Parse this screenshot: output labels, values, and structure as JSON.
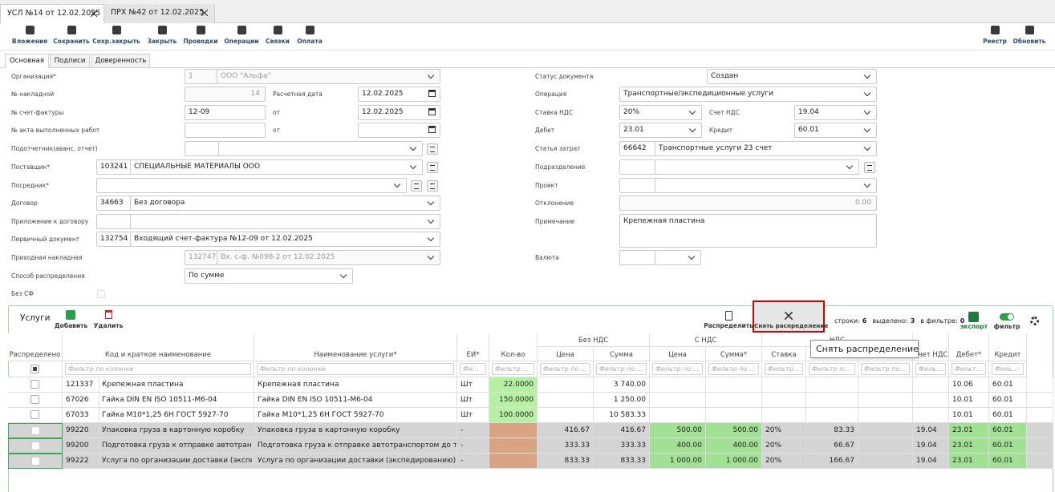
{
  "tabs": [
    "УСЛ №14 от 12.02.2025",
    "ПРХ №42 от 12.02.2025"
  ],
  "toolbar": {
    "left": [
      "Вложения",
      "Сохранить",
      "Сохр.закрыть",
      "Закрыть",
      "Проводки",
      "Операции",
      "Связки",
      "Оплата"
    ],
    "right": [
      "Реестр",
      "Обновить"
    ]
  },
  "subtabs": [
    "Основная",
    "Подписи",
    "Доверенность"
  ],
  "form": {
    "org": {
      "label": "Организация*",
      "code": "1",
      "value": "ООО \"Альфа\""
    },
    "invoice_no": {
      "label": "№ накладной",
      "value": "14"
    },
    "calc_date": {
      "label": "Расчетная дата",
      "value": "12.02.2025"
    },
    "sf_no": {
      "label": "№ счет-фактуры",
      "value": "12-09"
    },
    "sf_date": {
      "label": "от",
      "value": "12.02.2025"
    },
    "act_no": {
      "label": "№ акта выполненных работ"
    },
    "act_date": {
      "label": "от"
    },
    "accountable": {
      "label": "Подотчетник(аванс. отчет)"
    },
    "supplier": {
      "label": "Поставщик*",
      "code": "103241",
      "value": "СПЕЦИАЛЬНЫЕ МАТЕРИАЛЫ ООО"
    },
    "intermediary": {
      "label": "Посредник*"
    },
    "contract": {
      "label": "Договор",
      "code": "34663",
      "value": "Без договора"
    },
    "appendix": {
      "label": "Приложение к договору"
    },
    "primary_doc": {
      "label": "Первичный документ",
      "code": "132754",
      "value": "Входящий счет-фактура №12-09 от 12.02.2025"
    },
    "receipt": {
      "label": "Приходная накладная",
      "code": "132747",
      "value": "Вх. с-ф. №098-2 от 12.02.2025"
    },
    "distribution": {
      "label": "Способ распределения",
      "value": "По сумме"
    },
    "no_sf": {
      "label": "Без СФ"
    },
    "status": {
      "label": "Статус документа",
      "value": "Создан"
    },
    "operation": {
      "label": "Операция",
      "value": "Транспортные/экспедиционные услуги"
    },
    "vat_rate": {
      "label": "Ставка НДС",
      "value": "20%"
    },
    "vat_account": {
      "label": "Счет НДС",
      "value": "19.04"
    },
    "debit": {
      "label": "Дебет",
      "value": "23.01"
    },
    "credit": {
      "label": "Кредит",
      "value": "60.01"
    },
    "cost_item": {
      "label": "Статья затрат",
      "code": "66642",
      "value": "Транспортные услуги 23 счет"
    },
    "department": {
      "label": "Подразделение"
    },
    "project": {
      "label": "Проект"
    },
    "deviation": {
      "label": "Отклонение",
      "value": "0.00"
    },
    "note": {
      "label": "Примечание",
      "value": "Крепежная пластина"
    },
    "currency": {
      "label": "Валюта"
    }
  },
  "grid": {
    "title": "Услуги",
    "add": "Добавить",
    "delete": "Удалить",
    "distribute": "Распределить",
    "undistribute": "Снять распределение",
    "stats": [
      {
        "label": "строки:",
        "value": "6"
      },
      {
        "label": "выделено:",
        "value": "3"
      },
      {
        "label": "в фильтре:",
        "value": "0"
      }
    ],
    "export": "экспорт",
    "filter": "фильтр",
    "tooltip": "Снять распределение",
    "filter_placeholder": "Фильтр по колонке",
    "header": [
      "Распределено",
      "Код и краткое наименование",
      "Наименование услуги*",
      "ЕИ*",
      "Кол-во",
      {
        "group": "Без НДС",
        "columns": [
          "Цена",
          "Сумма"
        ]
      },
      {
        "group": "С НДС",
        "columns": [
          "Цена",
          "Сумма*"
        ]
      },
      {
        "group": "НДС",
        "columns": [
          "Ставка",
          null,
          null
        ]
      },
      "Счет НДС",
      "Дебет*",
      "Кредит"
    ],
    "rows": [
      {
        "selected": false,
        "code": "121337",
        "short_name": "Крепежная пластина",
        "cells": [
          "Крепежная пластина",
          "Шт",
          "22.0000",
          null,
          "3 740.00",
          null,
          null,
          null,
          null,
          null,
          null,
          "10.06",
          "60.01"
        ]
      },
      {
        "selected": false,
        "code": "67026",
        "short_name": "Гайка DIN EN ISO 10511-M6-04",
        "cells": [
          "Гайка DIN EN ISO 10511-M6-04",
          "Шт",
          "150.0000",
          null,
          "1 250.00",
          null,
          null,
          null,
          null,
          null,
          null,
          "10.01",
          "60.01"
        ]
      },
      {
        "selected": false,
        "code": "67033",
        "short_name": "Гайка М10*1,25 6Н ГОСТ 5927-70",
        "cells": [
          "Гайка М10*1,25 6Н ГОСТ 5927-70",
          "Шт",
          "100.0000",
          null,
          "10 583.33",
          null,
          null,
          null,
          null,
          null,
          null,
          "10.01",
          "60.01"
        ]
      },
      {
        "selected": true,
        "code": "99220",
        "short_name": "Упаковка груза в картонную коробку",
        "cells": [
          "Упаковка груза в картонную коробку",
          "-",
          null,
          "416.67",
          "416.67",
          "500.00",
          "500.00",
          "20%",
          "83.33",
          null,
          "19.04",
          "23.01",
          "60.01"
        ]
      },
      {
        "selected": true,
        "code": "99200",
        "short_name": "Подготовка груза к отправке автотранспо...",
        "cells": [
          "Подготовка груза к отправке автотранспортом до тран...",
          "-",
          null,
          "333.33",
          "333.33",
          "400.00",
          "400.00",
          "20%",
          "66.67",
          null,
          "19.04",
          "23.01",
          "60.01"
        ]
      },
      {
        "selected": true,
        "code": "99222",
        "short_name": "Услуга по организации доставки (экспеди",
        "cells": [
          "Услуга по организации доставки (экспедированию) груза",
          "-",
          null,
          "833.33",
          "833.33",
          "1 000.00",
          "1 000.00",
          "20%",
          "166.67",
          null,
          "19.04",
          "23.01",
          "60.01"
        ]
      }
    ]
  }
}
